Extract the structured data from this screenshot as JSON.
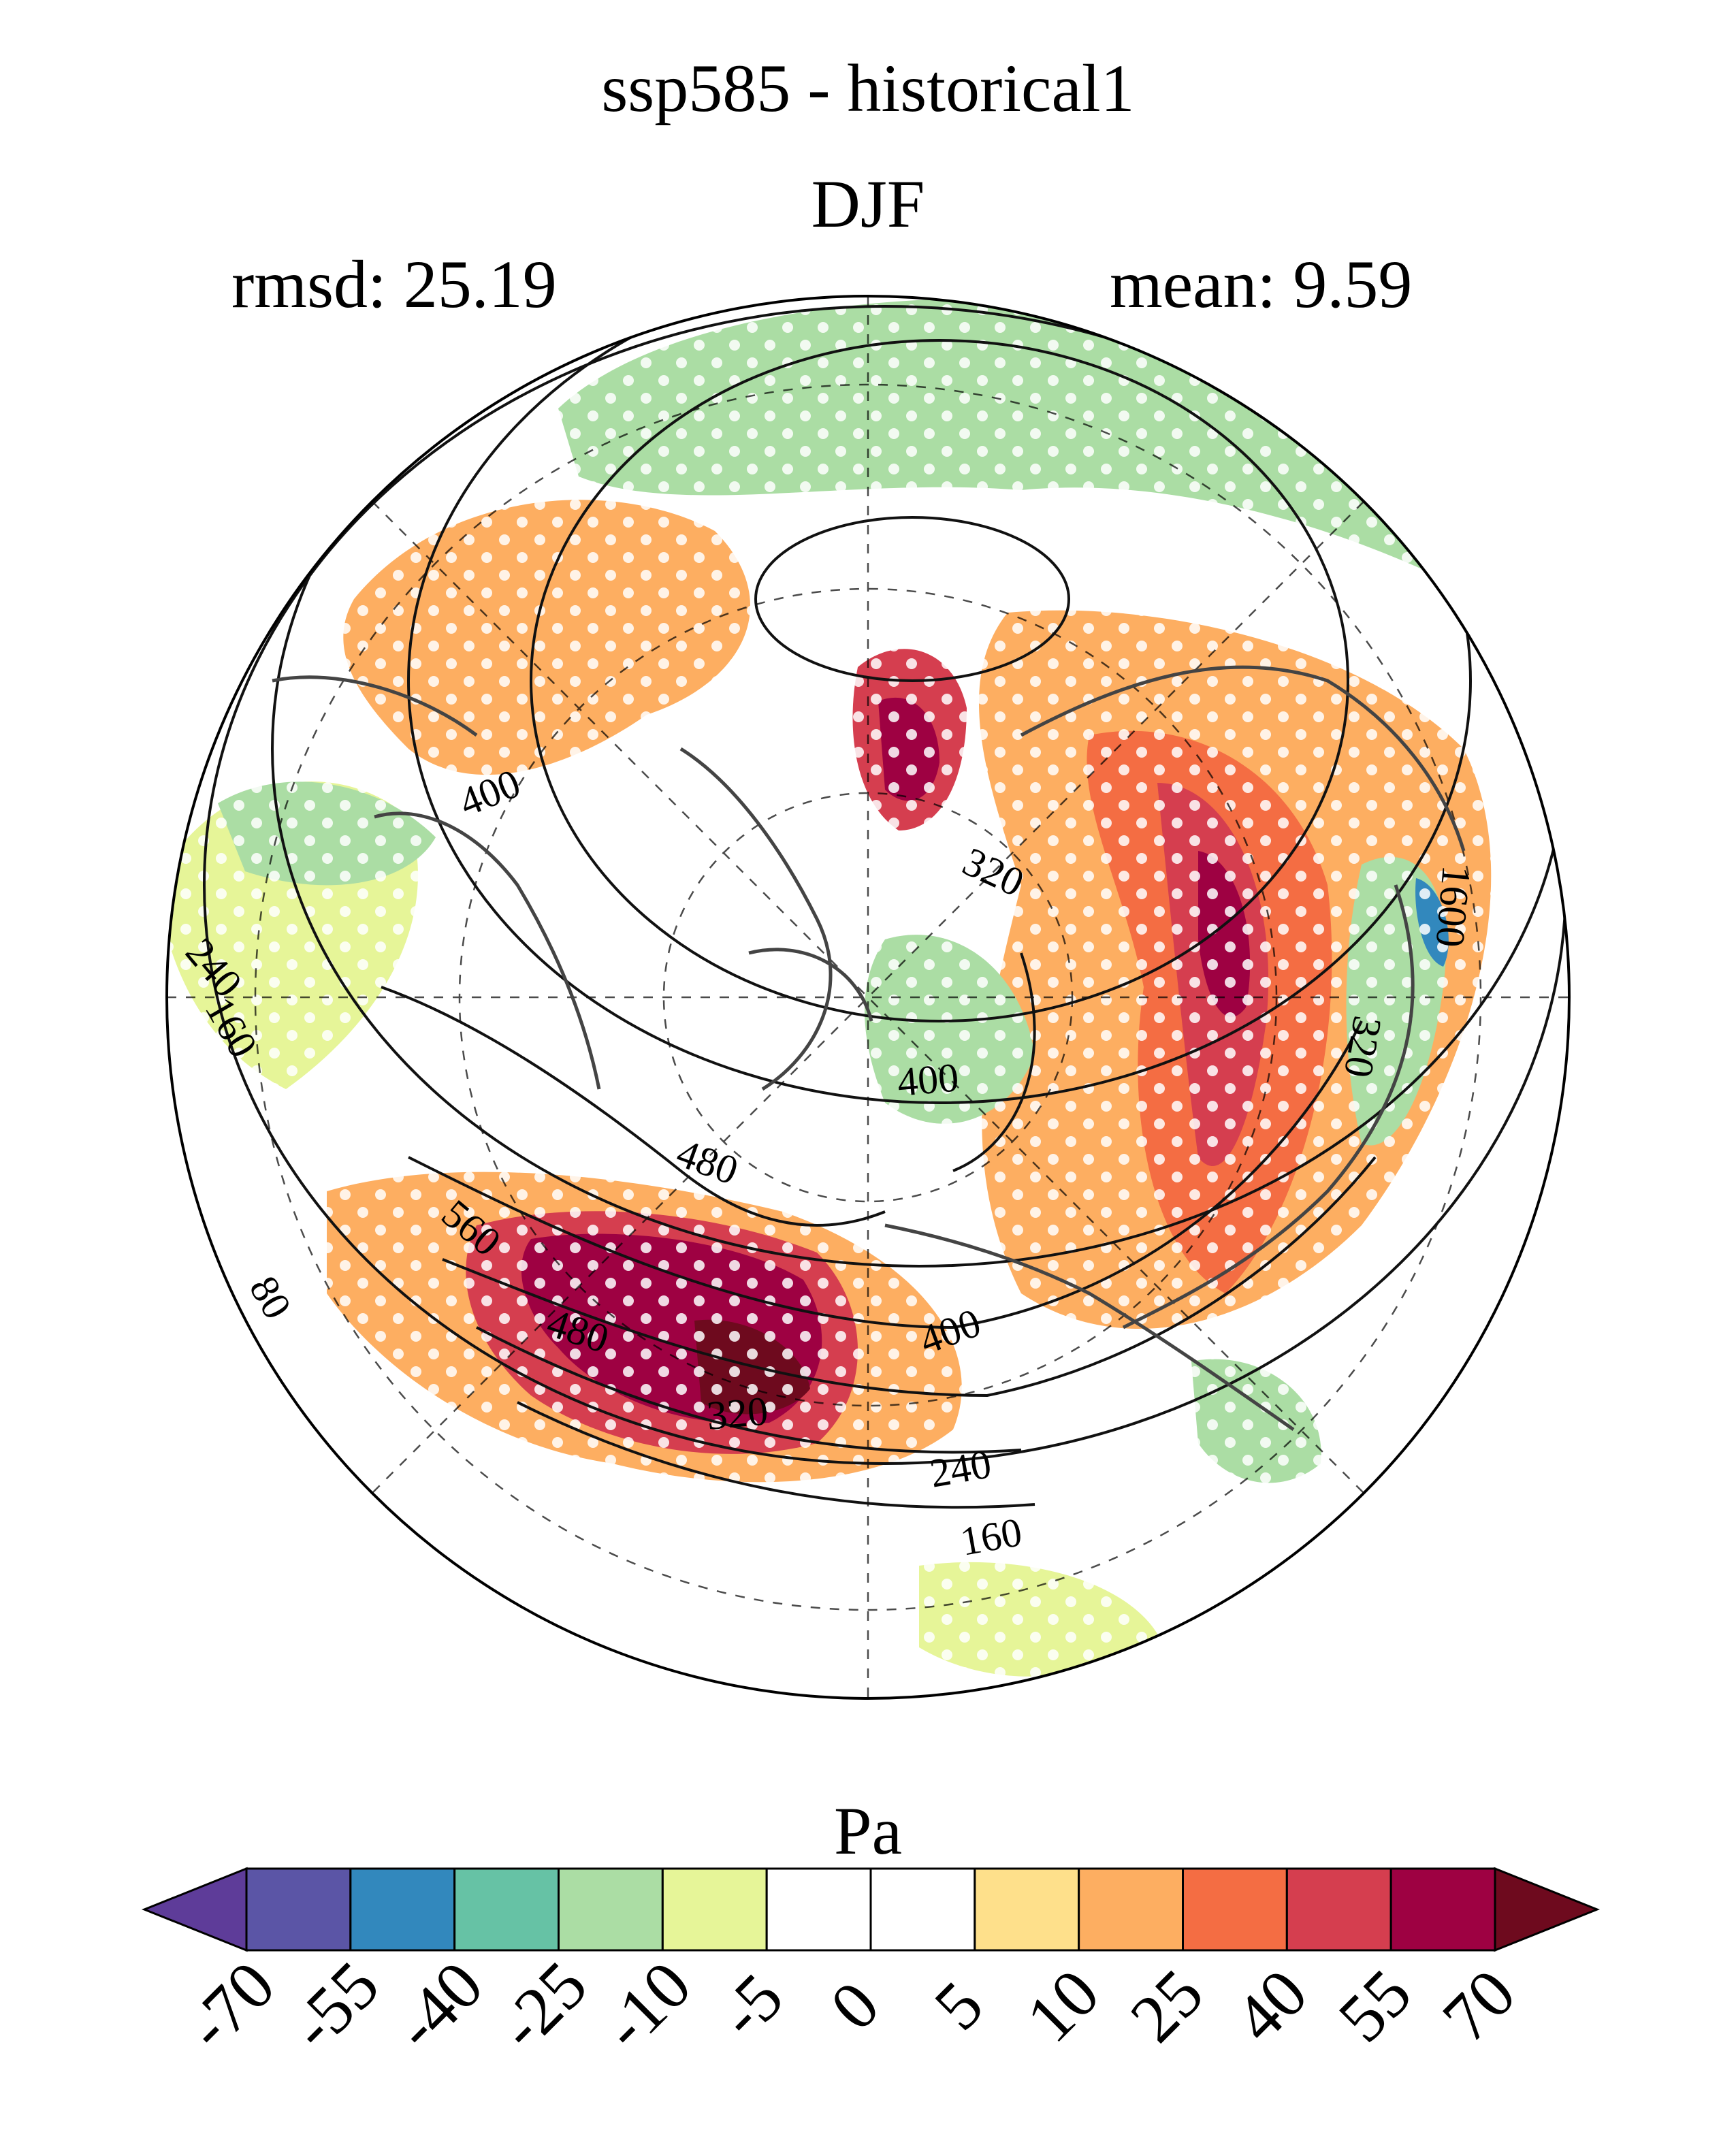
{
  "header": {
    "title_line1": "ssp585 - historical1",
    "title_line2": "DJF",
    "rmsd_text": "rmsd: 25.19",
    "mean_text": "mean: 9.59"
  },
  "map": {
    "projection": "north-polar-stereographic",
    "contour_labels": [
      "400",
      "320",
      "240",
      "160",
      "80",
      "400",
      "480",
      "560",
      "480",
      "320",
      "400",
      "240",
      "160",
      "320",
      "1600"
    ]
  },
  "colorbar": {
    "units": "Pa",
    "tick_labels": [
      "-70",
      "-55",
      "-40",
      "-25",
      "-10",
      "-5",
      "0",
      "5",
      "10",
      "25",
      "40",
      "55",
      "70"
    ],
    "colors": [
      "#5e3c99",
      "#5b55a6",
      "#3288bd",
      "#66c2a5",
      "#abdda4",
      "#e6f598",
      "#ffffff",
      "#ffffff",
      "#fee08b",
      "#fdae61",
      "#f46d43",
      "#d53e4f",
      "#9e0142",
      "#6e0a1e"
    ]
  }
}
